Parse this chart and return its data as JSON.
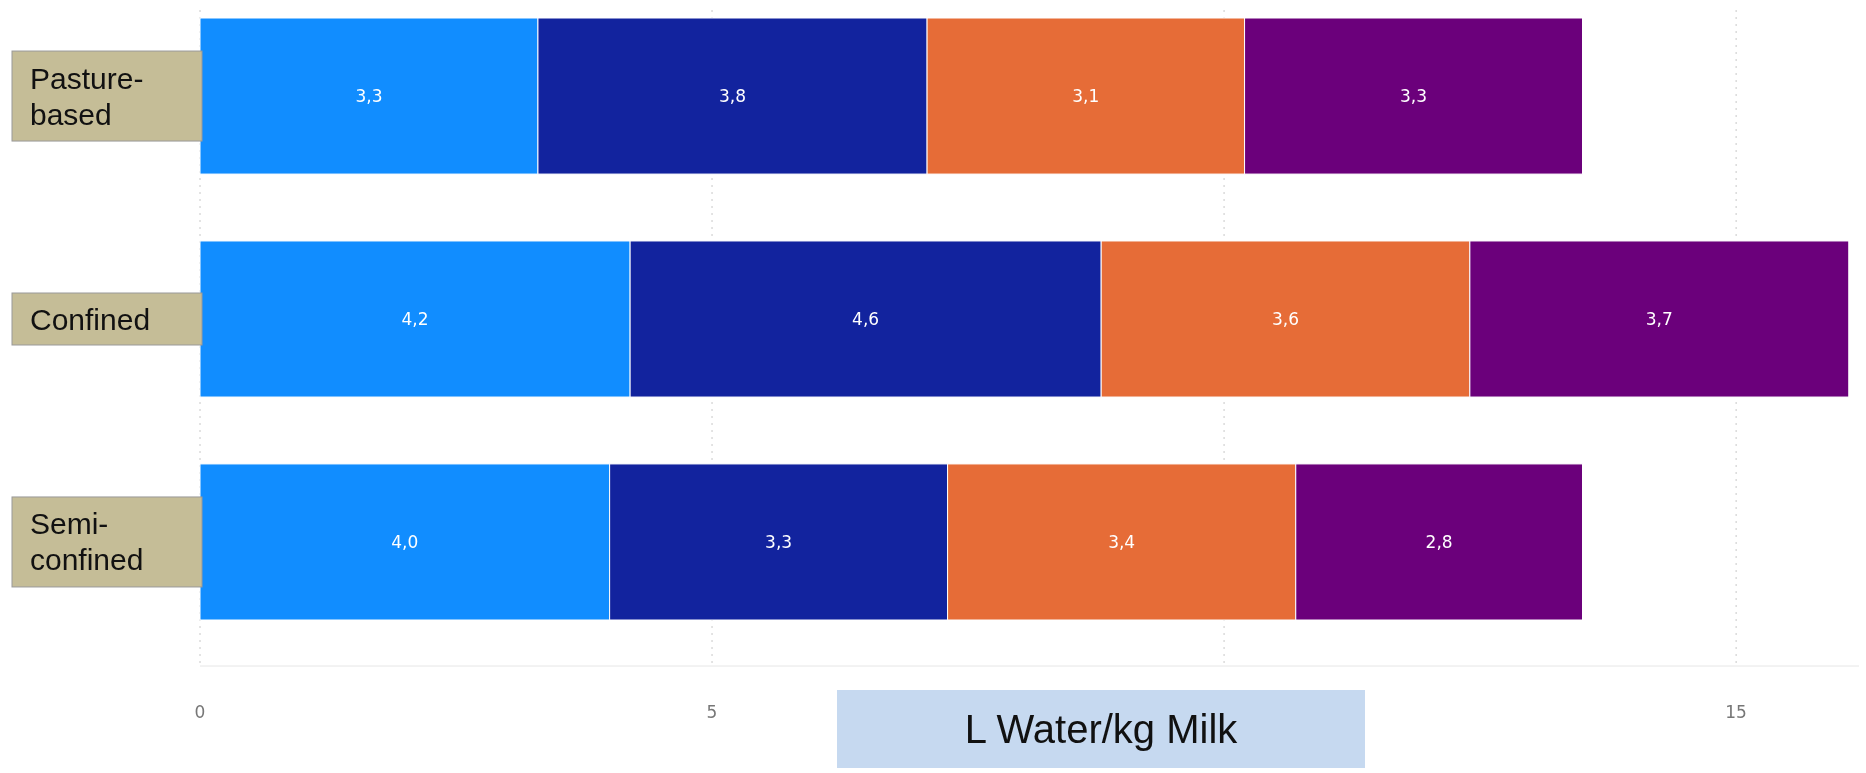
{
  "chart_data": {
    "type": "bar",
    "orientation": "horizontal",
    "stacked": true,
    "xlabel": "L Water/kg Milk",
    "categories": [
      "Pasture-based",
      "Confined",
      "Semi-confined"
    ],
    "series": [
      {
        "color": "#118dff",
        "values": [
          3.3,
          4.2,
          4.0
        ],
        "value_labels": [
          "3,3",
          "4,2",
          "4,0"
        ]
      },
      {
        "color": "#12239e",
        "values": [
          3.8,
          4.6,
          3.3
        ],
        "value_labels": [
          "3,8",
          "4,6",
          "3,3"
        ]
      },
      {
        "color": "#e66c37",
        "values": [
          3.1,
          3.6,
          3.4
        ],
        "value_labels": [
          "3,1",
          "3,6",
          "3,4"
        ]
      },
      {
        "color": "#6b007b",
        "values": [
          3.3,
          3.7,
          2.8
        ],
        "value_labels": [
          "3,3",
          "3,7",
          "2,8"
        ]
      }
    ],
    "xlim": [
      0,
      16.2
    ],
    "xticks": [
      0,
      5,
      {
        "value": 10,
        "label": null
      },
      15
    ],
    "grid": "x"
  }
}
